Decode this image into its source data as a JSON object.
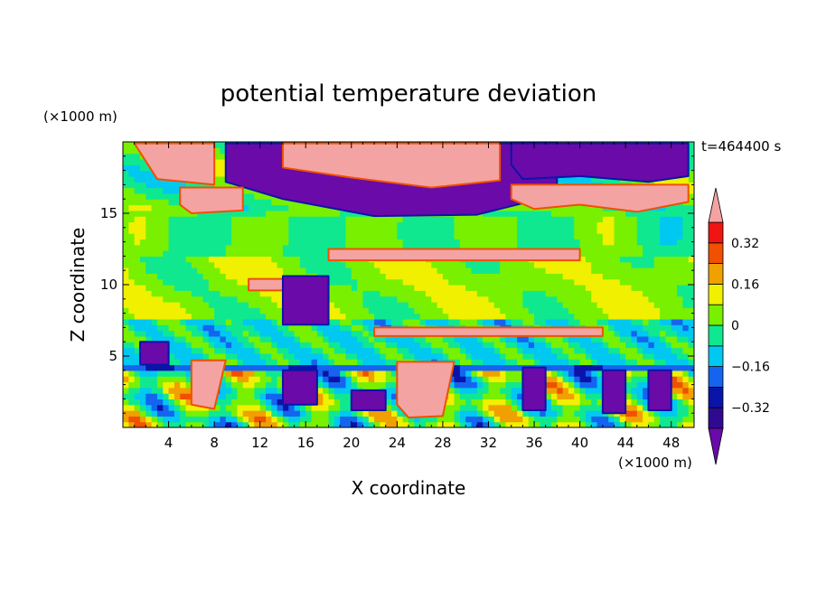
{
  "chart_data": {
    "type": "heatmap",
    "title": "potential temperature deviation",
    "xlabel": "X coordinate",
    "ylabel": "Z coordinate",
    "x_unit": "(×1000 m)",
    "y_unit": "(×1000 m)",
    "time_label": "t=464400 s",
    "xlim": [
      0,
      50
    ],
    "ylim": [
      0,
      20
    ],
    "x_ticks": [
      4,
      8,
      12,
      16,
      20,
      24,
      28,
      32,
      36,
      40,
      44,
      48
    ],
    "y_ticks": [
      5,
      10,
      15
    ],
    "colorbar": {
      "levels": [
        -0.4,
        -0.32,
        -0.24,
        -0.16,
        -0.08,
        0,
        0.08,
        0.16,
        0.24,
        0.32,
        0.4
      ],
      "labels": [
        "-0.32",
        "-0.16",
        "0",
        "0.16",
        "0.32"
      ],
      "label_values": [
        -0.32,
        -0.16,
        0,
        0.16,
        0.32
      ],
      "colors": [
        "#2e0a90",
        "#0a14a8",
        "#1464f0",
        "#00c8f0",
        "#10e890",
        "#78f000",
        "#f0f000",
        "#f0a000",
        "#f05000",
        "#f01414"
      ],
      "under_color": "#6a0aa8",
      "over_color": "#f4a3a3"
    },
    "features": [
      {
        "x": [
          1,
          8,
          8,
          3
        ],
        "z": [
          19.9,
          19.9,
          17,
          17.4
        ],
        "value": 0.45
      },
      {
        "x": [
          9,
          38,
          38,
          31,
          22,
          14,
          9
        ],
        "z": [
          19.9,
          19.9,
          16.3,
          14.9,
          14.8,
          16.0,
          17.2
        ],
        "value": -0.45
      },
      {
        "x": [
          14,
          33,
          33,
          27,
          20,
          14
        ],
        "z": [
          19.9,
          19.9,
          17.3,
          16.8,
          17.5,
          18.2
        ],
        "value": 0.45
      },
      {
        "x": [
          34,
          49.5,
          49.5,
          46,
          40,
          35,
          34
        ],
        "z": [
          19.9,
          19.9,
          17.6,
          17.2,
          17.6,
          17.4,
          18.4
        ],
        "value": -0.45
      },
      {
        "x": [
          34,
          49.5,
          49.5,
          45,
          40,
          36,
          34
        ],
        "z": [
          17.0,
          17.0,
          15.8,
          15.1,
          15.6,
          15.3,
          16.0
        ],
        "value": 0.45
      },
      {
        "x": [
          5,
          10.5,
          10.5,
          6,
          5
        ],
        "z": [
          16.8,
          16.8,
          15.2,
          15.0,
          15.6
        ],
        "value": 0.45
      },
      {
        "x": [
          18,
          40,
          40,
          18
        ],
        "z": [
          12.5,
          12.5,
          11.7,
          11.7
        ],
        "value": 0.45
      },
      {
        "x": [
          11,
          16,
          16,
          11
        ],
        "z": [
          10.4,
          10.4,
          9.6,
          9.6
        ],
        "value": 0.45
      },
      {
        "x": [
          14,
          18,
          18,
          14
        ],
        "z": [
          10.6,
          10.6,
          7.2,
          7.2
        ],
        "value": -0.45
      },
      {
        "x": [
          6,
          9,
          8,
          6
        ],
        "z": [
          4.7,
          4.7,
          1.3,
          1.6
        ],
        "value": 0.45
      },
      {
        "x": [
          24,
          29,
          28,
          25,
          24
        ],
        "z": [
          4.6,
          4.6,
          0.8,
          0.7,
          1.6
        ],
        "value": 0.45
      },
      {
        "x": [
          14,
          17,
          17,
          14
        ],
        "z": [
          4.0,
          4.0,
          1.6,
          1.6
        ],
        "value": -0.45
      },
      {
        "x": [
          20,
          23,
          23,
          20
        ],
        "z": [
          2.6,
          2.6,
          1.2,
          1.2
        ],
        "value": -0.45
      },
      {
        "x": [
          35,
          37,
          37,
          35
        ],
        "z": [
          4.2,
          4.2,
          1.2,
          1.2
        ],
        "value": -0.45
      },
      {
        "x": [
          42,
          44,
          44,
          42
        ],
        "z": [
          4.0,
          4.0,
          1.0,
          1.0
        ],
        "value": -0.45
      },
      {
        "x": [
          46,
          48,
          48,
          46
        ],
        "z": [
          4.0,
          4.0,
          1.2,
          1.2
        ],
        "value": -0.45
      },
      {
        "x": [
          1.5,
          4,
          4,
          1.5
        ],
        "z": [
          6.0,
          6.0,
          4.4,
          4.4
        ],
        "value": -0.45
      },
      {
        "x": [
          22,
          42,
          42,
          22
        ],
        "z": [
          7.0,
          7.0,
          6.4,
          6.4
        ],
        "value": 0.45
      }
    ]
  }
}
